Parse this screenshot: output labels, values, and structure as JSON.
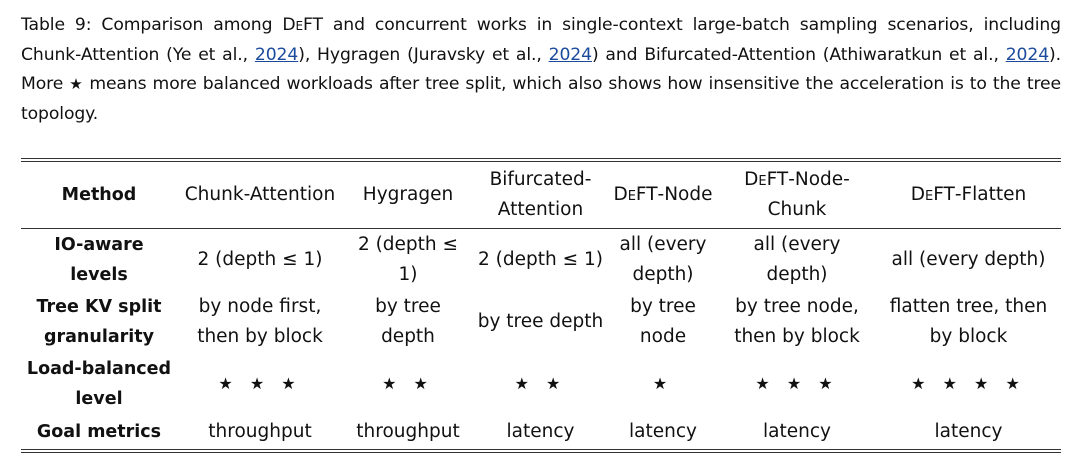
{
  "caption": {
    "prefix": "Table 9: Comparison among ",
    "deft": "DeFT",
    "part1": " and concurrent works in single-context large-batch sampling scenarios, including Chunk-Attention (Ye et al., ",
    "cite1": "2024",
    "part2": "), Hygragen (Juravsky et al., ",
    "cite2": "2024",
    "part3": ") and Bifurcated-Attention (Athiwaratkun et al., ",
    "cite3": "2024",
    "part4": "). More ",
    "star": "★",
    "part5": " means more balanced workloads after tree split, which also shows how insensitive the acceleration is to the tree topology."
  },
  "table": {
    "header": {
      "method": "Method",
      "col1": "Chunk-Attention",
      "col2": "Hygragen",
      "col3": "Bifurcated-Attention",
      "col4_prefix": "DeFT",
      "col4_suffix": "-Node",
      "col5_prefix": "DeFT",
      "col5_suffix": "-Node-Chunk",
      "col6_prefix": "DeFT",
      "col6_suffix": "-Flatten"
    },
    "rows": [
      {
        "label": "IO-aware levels",
        "cells": [
          "2 (depth ≤ 1)",
          "2 (depth ≤ 1)",
          "2 (depth ≤ 1)",
          "all (every depth)",
          "all (every depth)",
          "all (every depth)"
        ]
      },
      {
        "label": "Tree KV split granularity",
        "cells": [
          "by node first, then by block",
          "by tree depth",
          "by tree depth",
          "by tree node",
          "by tree node, then by block",
          "flatten tree, then by block"
        ]
      },
      {
        "label": "Load-balanced level",
        "cells": [
          "★ ★ ★",
          "★ ★",
          "★ ★",
          "★",
          "★ ★ ★",
          "★ ★ ★ ★"
        ]
      },
      {
        "label": "Goal metrics",
        "cells": [
          "throughput",
          "throughput",
          "latency",
          "latency",
          "latency",
          "latency"
        ]
      }
    ]
  }
}
